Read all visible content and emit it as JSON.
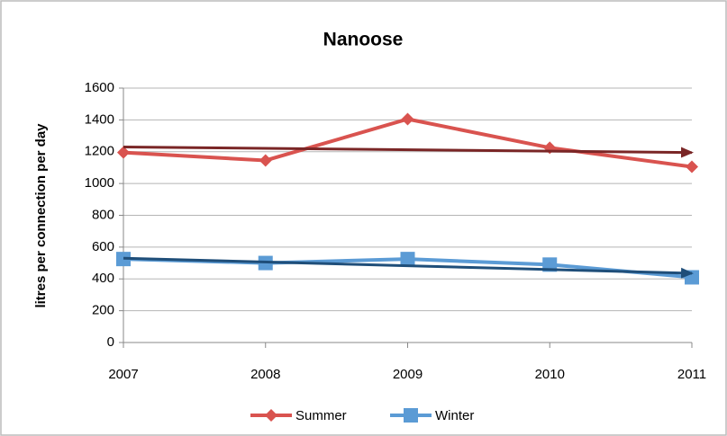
{
  "chart_data": {
    "type": "line",
    "title": "Nanoose",
    "y_label": "litres per connection per day",
    "x": [
      2007,
      2008,
      2009,
      2010,
      2011
    ],
    "xlim": [
      2007,
      2011
    ],
    "xticks": [
      2007,
      2008,
      2009,
      2010,
      2011
    ],
    "ylim": [
      0,
      1600
    ],
    "yticks": [
      0,
      200,
      400,
      600,
      800,
      1000,
      1200,
      1400,
      1600
    ],
    "grid": true,
    "legend": "bottom",
    "series": [
      {
        "name": "Summer",
        "color": "#d9534f",
        "marker": "diamond",
        "values": [
          1195,
          1145,
          1405,
          1225,
          1105
        ]
      },
      {
        "name": "Winter",
        "color": "#5b9bd5",
        "marker": "square",
        "values": [
          525,
          500,
          525,
          490,
          410
        ]
      }
    ],
    "trend_arrows": [
      {
        "color": "#7a2626",
        "x": [
          2007,
          2011
        ],
        "values": [
          1230,
          1195
        ]
      },
      {
        "color": "#1f4e79",
        "x": [
          2007,
          2011
        ],
        "values": [
          530,
          435
        ]
      }
    ]
  }
}
